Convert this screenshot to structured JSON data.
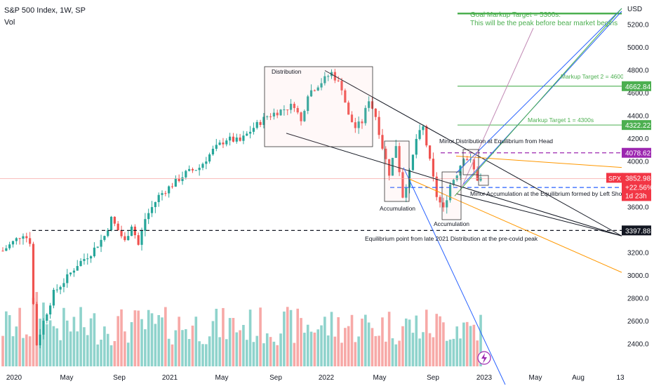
{
  "header": {
    "title": "S&P 500 Index, 1W, SP",
    "volume_label": "Vol"
  },
  "currency": "USD",
  "colors": {
    "up": "#26a69a",
    "down": "#ef5350",
    "up_vol": "#8fd3cc",
    "down_vol": "#f7a9a7",
    "green_line": "#4caf50",
    "purple": "#9c27b0",
    "blue": "#2962ff",
    "orange": "#ff9800",
    "black": "#131722",
    "red_label": "#f23645"
  },
  "chart_data": {
    "type": "candlestick",
    "title": "S&P 500 Index, 1W, SP",
    "x_ticks": [
      "2020",
      "May",
      "Sep",
      "2021",
      "May",
      "Sep",
      "2022",
      "May",
      "Sep",
      "2023",
      "May",
      "Aug",
      "13"
    ],
    "y_ticks": [
      5200,
      5000,
      4800,
      4600,
      4400,
      4200,
      4000,
      3800,
      3600,
      3400,
      3200,
      3000,
      2800,
      2600,
      2400
    ],
    "ylim": [
      2150,
      5400
    ],
    "price_series": [
      [
        0,
        3220
      ],
      [
        6,
        3370
      ],
      [
        8,
        3300
      ],
      [
        9,
        2750
      ],
      [
        10,
        2400
      ],
      [
        12,
        2600
      ],
      [
        15,
        2850
      ],
      [
        18,
        2950
      ],
      [
        22,
        3100
      ],
      [
        26,
        3200
      ],
      [
        30,
        3350
      ],
      [
        32,
        3500
      ],
      [
        34,
        3400
      ],
      [
        36,
        3300
      ],
      [
        38,
        3450
      ],
      [
        40,
        3270
      ],
      [
        42,
        3500
      ],
      [
        44,
        3600
      ],
      [
        46,
        3700
      ],
      [
        50,
        3800
      ],
      [
        54,
        3900
      ],
      [
        58,
        3950
      ],
      [
        62,
        4100
      ],
      [
        66,
        4200
      ],
      [
        70,
        4180
      ],
      [
        74,
        4300
      ],
      [
        78,
        4400
      ],
      [
        82,
        4450
      ],
      [
        86,
        4500
      ],
      [
        88,
        4350
      ],
      [
        90,
        4600
      ],
      [
        94,
        4700
      ],
      [
        97,
        4780
      ],
      [
        100,
        4650
      ],
      [
        102,
        4400
      ],
      [
        104,
        4300
      ],
      [
        106,
        4350
      ],
      [
        108,
        4550
      ],
      [
        110,
        4400
      ],
      [
        112,
        4130
      ],
      [
        114,
        3900
      ],
      [
        116,
        4150
      ],
      [
        118,
        3700
      ],
      [
        120,
        3900
      ],
      [
        122,
        4200
      ],
      [
        124,
        4300
      ],
      [
        126,
        4000
      ],
      [
        128,
        3700
      ],
      [
        130,
        3580
      ],
      [
        132,
        3800
      ],
      [
        134,
        3900
      ],
      [
        136,
        4050
      ],
      [
        138,
        4000
      ],
      [
        140,
        3850
      ],
      [
        141,
        3853
      ]
    ],
    "current_price": 3852.98,
    "change": "+22.56%",
    "countdown": "1d 23h",
    "price_labels": [
      {
        "value": 4662.84,
        "color": "#4caf50"
      },
      {
        "value": 4322.22,
        "color": "#4caf50"
      },
      {
        "value": 4078.62,
        "color": "#9c27b0"
      },
      {
        "value": 3774.66,
        "color": "#2962ff"
      },
      {
        "value": 3397.88,
        "color": "#131722"
      }
    ],
    "annotations": [
      {
        "text": "Goal Markup Target = 5300s.",
        "color": "#4caf50"
      },
      {
        "text": "This will be the peak before bear market begins",
        "color": "#4caf50"
      },
      {
        "text": "Markup Target 2 = 4600s",
        "color": "#4caf50"
      },
      {
        "text": "Markup Target 1 = 4300s",
        "color": "#4caf50"
      },
      {
        "text": "Distribution",
        "color": "#131722"
      },
      {
        "text": "Minor Distribution at Equilibrium from Head",
        "color": "#131722"
      },
      {
        "text": "Minor Accumulation at the Equilibrium formed by Left Shoulder",
        "color": "#131722"
      },
      {
        "text": "Accumulation",
        "color": "#131722"
      },
      {
        "text": "Accumulation",
        "color": "#131722"
      },
      {
        "text": "Equilibrium point from late 2021 Distribution at the pre-covid peak",
        "color": "#131722"
      }
    ],
    "symbol": "SPX"
  }
}
